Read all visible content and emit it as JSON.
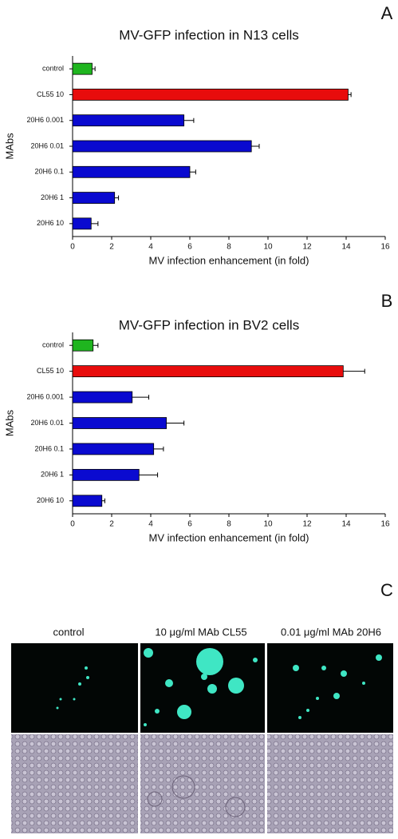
{
  "chart_data": [
    {
      "type": "bar",
      "orientation": "horizontal",
      "panel_label": "A",
      "title": "MV-GFP infection in N13 cells",
      "x_label": "MV infection enhancement (in fold)",
      "y_label": "MAbs",
      "categories": [
        "control",
        "CL55 10",
        "20H6 0.001",
        "20H6 0.01",
        "20H6 0.1",
        "20H6 1",
        "20H6 10"
      ],
      "values": [
        1.0,
        14.1,
        5.7,
        9.15,
        6.0,
        2.15,
        0.95
      ],
      "errors": [
        0.15,
        0.15,
        0.5,
        0.4,
        0.3,
        0.2,
        0.35
      ],
      "colors": [
        "#1fb51f",
        "#e80c0c",
        "#0a0ad0",
        "#0a0ad0",
        "#0a0ad0",
        "#0a0ad0",
        "#0a0ad0"
      ],
      "xlim": [
        0,
        16
      ],
      "xticks": [
        0,
        2,
        4,
        6,
        8,
        10,
        12,
        14,
        16
      ]
    },
    {
      "type": "bar",
      "orientation": "horizontal",
      "panel_label": "B",
      "title": "MV-GFP infection in BV2 cells",
      "x_label": "MV infection enhancement (in fold)",
      "y_label": "MAbs",
      "categories": [
        "control",
        "CL55 10",
        "20H6 0.001",
        "20H6 0.01",
        "20H6 0.1",
        "20H6 1",
        "20H6 10"
      ],
      "values": [
        1.05,
        13.85,
        3.05,
        4.8,
        4.15,
        3.4,
        1.5
      ],
      "errors": [
        0.25,
        1.1,
        0.85,
        0.9,
        0.5,
        0.95,
        0.15
      ],
      "colors": [
        "#1fb51f",
        "#e80c0c",
        "#0a0ad0",
        "#0a0ad0",
        "#0a0ad0",
        "#0a0ad0",
        "#0a0ad0"
      ],
      "xlim": [
        0,
        16
      ],
      "xticks": [
        0,
        2,
        4,
        6,
        8,
        10,
        12,
        14,
        16
      ]
    }
  ],
  "micrographs": {
    "panel_label": "C",
    "captions": [
      "control",
      "10 μg/ml MAb CL55",
      "0.01 μg/ml MAb 20H6"
    ]
  }
}
